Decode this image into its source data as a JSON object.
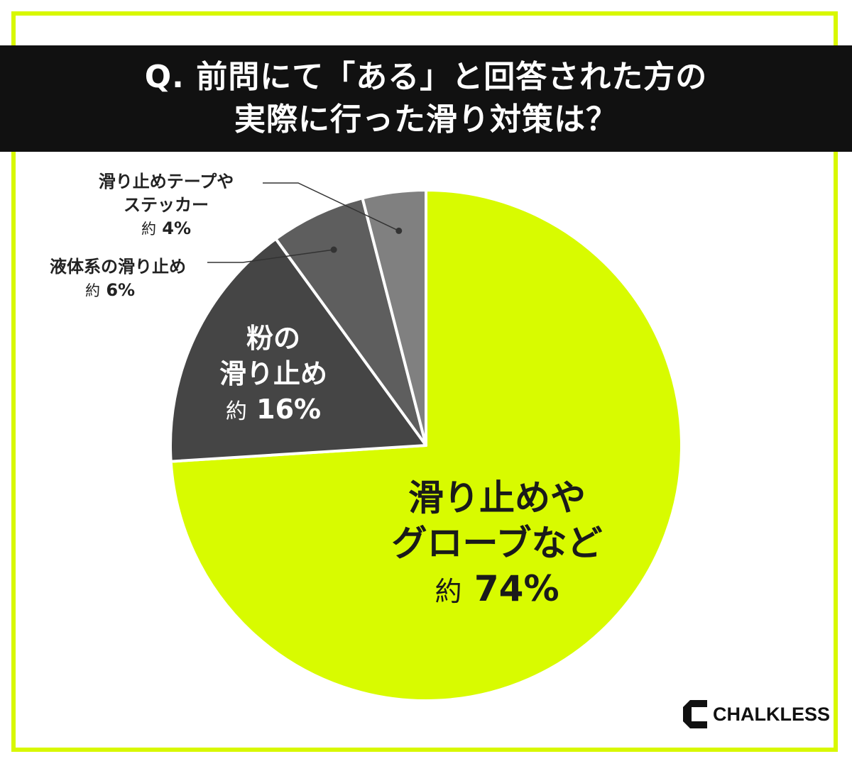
{
  "header": {
    "line1": "Q. 前問にて「ある」と回答された方の",
    "line2": "実際に行った滑り対策は？"
  },
  "chart_data": {
    "type": "pie",
    "categories": [
      "滑り止めやグローブなど",
      "粉の滑り止め",
      "液体系の滑り止め",
      "滑り止めテープやステッカー"
    ],
    "values": [
      74,
      16,
      6,
      4
    ],
    "colors": [
      "#d8fb00",
      "#454545",
      "#5e5e5e",
      "#808080"
    ],
    "labels": [
      {
        "lines": [
          "滑り止めや",
          "グローブなど"
        ],
        "prefix": "約",
        "value": "74%"
      },
      {
        "lines": [
          "粉の",
          "滑り止め"
        ],
        "prefix": "約",
        "value": "16%"
      },
      {
        "lines": [
          "液体系の滑り止め"
        ],
        "prefix": "約",
        "value": "6%"
      },
      {
        "lines": [
          "滑り止めテープや",
          "ステッカー"
        ],
        "prefix": "約",
        "value": "4%"
      }
    ]
  },
  "brand": {
    "name": "CHALKLESS",
    "accent": "#d8f800"
  }
}
